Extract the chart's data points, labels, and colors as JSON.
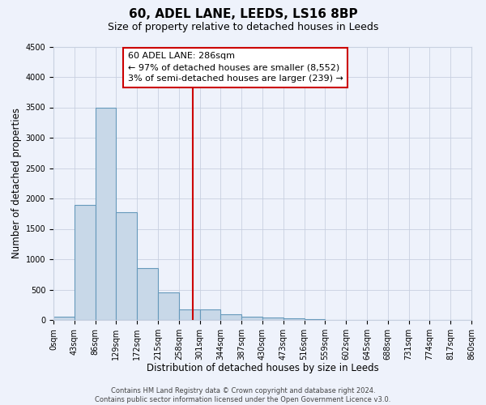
{
  "title": "60, ADEL LANE, LEEDS, LS16 8BP",
  "subtitle": "Size of property relative to detached houses in Leeds",
  "xlabel": "Distribution of detached houses by size in Leeds",
  "ylabel": "Number of detached properties",
  "bin_edges": [
    0,
    43,
    86,
    129,
    172,
    215,
    258,
    301,
    344,
    387,
    430,
    473,
    516,
    559,
    602,
    645,
    688,
    731,
    774,
    817,
    860
  ],
  "bar_heights": [
    50,
    1900,
    3500,
    1775,
    850,
    450,
    175,
    175,
    100,
    60,
    45,
    30,
    20,
    0,
    0,
    0,
    0,
    0,
    0,
    0
  ],
  "bar_color": "#c8d8e8",
  "bar_edge_color": "#6699bb",
  "vline_x": 286,
  "vline_color": "#cc0000",
  "annotation_title": "60 ADEL LANE: 286sqm",
  "annotation_line1": "← 97% of detached houses are smaller (8,552)",
  "annotation_line2": "3% of semi-detached houses are larger (239) →",
  "annotation_box_edgecolor": "#cc0000",
  "annotation_bg": "#ffffff",
  "annotation_text_color": "#000000",
  "ylim": [
    0,
    4500
  ],
  "yticks": [
    0,
    500,
    1000,
    1500,
    2000,
    2500,
    3000,
    3500,
    4000,
    4500
  ],
  "xtick_labels": [
    "0sqm",
    "43sqm",
    "86sqm",
    "129sqm",
    "172sqm",
    "215sqm",
    "258sqm",
    "301sqm",
    "344sqm",
    "387sqm",
    "430sqm",
    "473sqm",
    "516sqm",
    "559sqm",
    "602sqm",
    "645sqm",
    "688sqm",
    "731sqm",
    "774sqm",
    "817sqm",
    "860sqm"
  ],
  "footer_line1": "Contains HM Land Registry data © Crown copyright and database right 2024.",
  "footer_line2": "Contains public sector information licensed under the Open Government Licence v3.0.",
  "background_color": "#eef2fb",
  "grid_color": "#c8d0e0",
  "title_fontsize": 11,
  "subtitle_fontsize": 9,
  "axis_label_fontsize": 8.5,
  "tick_fontsize": 7,
  "footer_fontsize": 6,
  "annot_fontsize": 8
}
